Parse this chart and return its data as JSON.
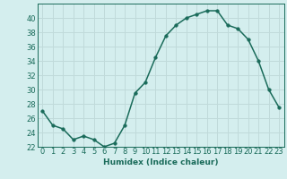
{
  "x": [
    0,
    1,
    2,
    3,
    4,
    5,
    6,
    7,
    8,
    9,
    10,
    11,
    12,
    13,
    14,
    15,
    16,
    17,
    18,
    19,
    20,
    21,
    22,
    23
  ],
  "y": [
    27,
    25,
    24.5,
    23,
    23.5,
    23,
    22,
    22.5,
    25,
    29.5,
    31,
    34.5,
    37.5,
    39,
    40,
    40.5,
    41,
    41,
    39,
    38.5,
    37,
    34,
    30,
    27.5
  ],
  "line_color": "#1a6b5a",
  "marker_color": "#1a6b5a",
  "bg_color": "#d4eeee",
  "grid_color": "#c0dada",
  "xlabel": "Humidex (Indice chaleur)",
  "ylim": [
    22,
    42
  ],
  "xlim": [
    -0.5,
    23.5
  ],
  "yticks": [
    22,
    24,
    26,
    28,
    30,
    32,
    34,
    36,
    38,
    40
  ],
  "xticks": [
    0,
    1,
    2,
    3,
    4,
    5,
    6,
    7,
    8,
    9,
    10,
    11,
    12,
    13,
    14,
    15,
    16,
    17,
    18,
    19,
    20,
    21,
    22,
    23
  ],
  "xlabel_fontsize": 6.5,
  "tick_fontsize": 6.0,
  "linewidth": 1.1,
  "markersize": 2.5
}
